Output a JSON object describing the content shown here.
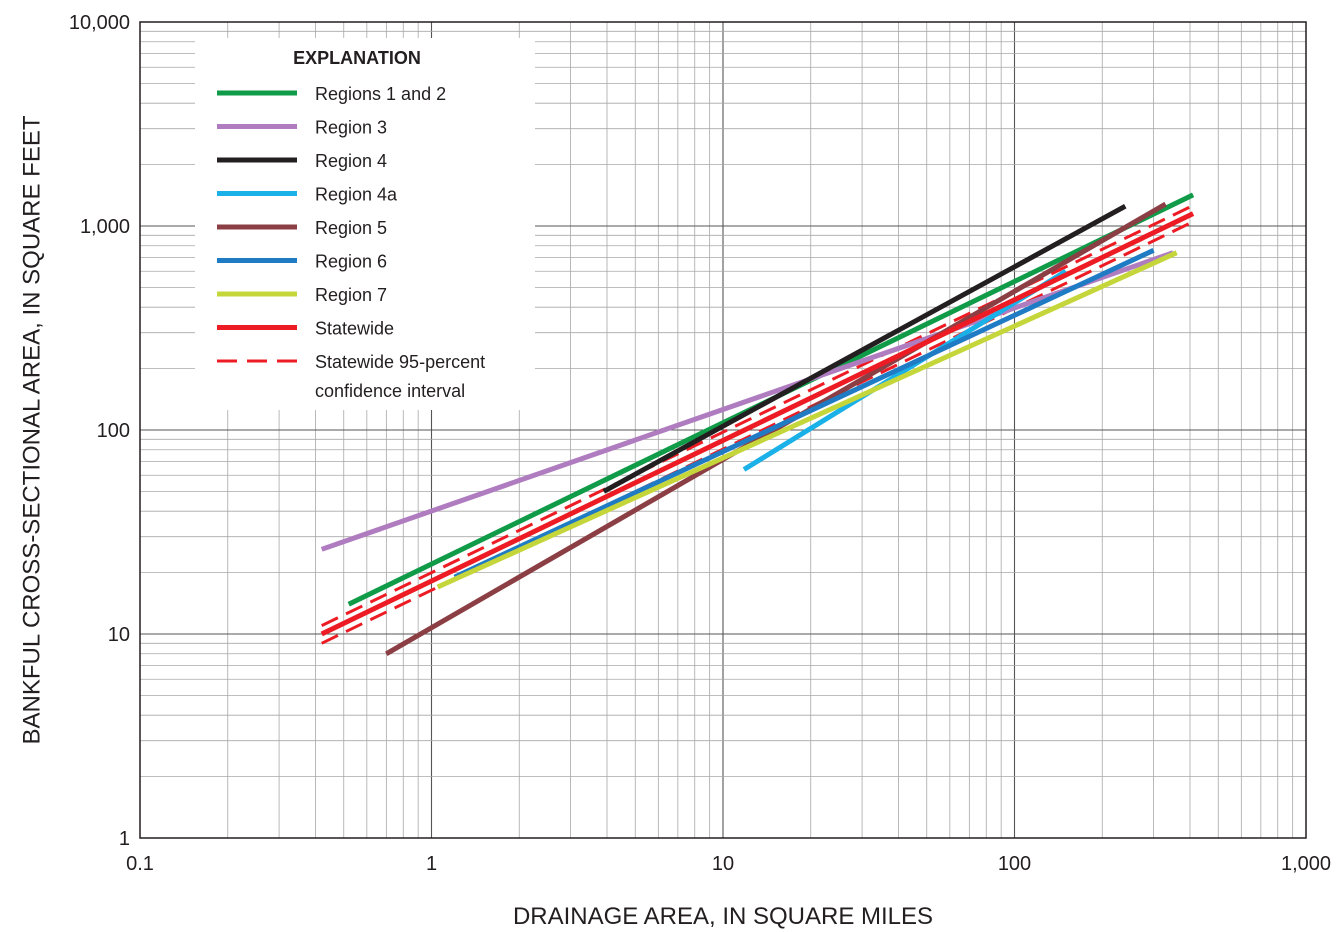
{
  "chart_data": {
    "type": "line",
    "title": "",
    "xlabel": "DRAINAGE AREA, IN SQUARE MILES",
    "ylabel": "BANKFUL CROSS-SECTIONAL AREA, IN SQUARE FEET",
    "x_scale": "log",
    "y_scale": "log",
    "xlim": [
      0.1,
      1000
    ],
    "ylim": [
      1,
      10000
    ],
    "x_ticks": [
      0.1,
      1,
      10,
      100,
      1000
    ],
    "x_tick_labels": [
      "0.1",
      "1",
      "10",
      "100",
      "1,000"
    ],
    "y_ticks": [
      1,
      10,
      100,
      1000,
      10000
    ],
    "y_tick_labels": [
      "1",
      "10",
      "100",
      "1,000",
      "10,000"
    ],
    "grid": true,
    "legend": {
      "title": "EXPLANATION",
      "placement": "top-left"
    },
    "series": [
      {
        "name": "Regions 1 and 2",
        "color": "#0f9b48",
        "style": "solid",
        "x": [
          0.52,
          410
        ],
        "y": [
          14,
          1420
        ]
      },
      {
        "name": "Region 3",
        "color": "#b07cc0",
        "style": "solid",
        "x": [
          0.42,
          350
        ],
        "y": [
          26,
          740
        ]
      },
      {
        "name": "Region 4",
        "color": "#231f20",
        "style": "solid",
        "x": [
          3.9,
          240
        ],
        "y": [
          50,
          1250
        ]
      },
      {
        "name": "Region 4a",
        "color": "#1ab0e8",
        "style": "solid",
        "x": [
          11.8,
          150
        ],
        "y": [
          64,
          600
        ]
      },
      {
        "name": "Region 5",
        "color": "#8b3e44",
        "style": "solid",
        "x": [
          0.7,
          330
        ],
        "y": [
          8,
          1280
        ]
      },
      {
        "name": "Region 6",
        "color": "#1f7bc4",
        "style": "solid",
        "x": [
          1.2,
          300
        ],
        "y": [
          19,
          760
        ]
      },
      {
        "name": "Region 7",
        "color": "#c5d63a",
        "style": "solid",
        "x": [
          1.05,
          360
        ],
        "y": [
          17,
          740
        ]
      },
      {
        "name": "Statewide",
        "color": "#ed1c24",
        "style": "solid",
        "x": [
          0.42,
          410
        ],
        "y": [
          10,
          1150
        ]
      },
      {
        "name": "Statewide 95-percent confidence interval",
        "name_lines": [
          "Statewide 95-percent",
          "confidence interval"
        ],
        "color": "#ed1c24",
        "style": "dashed",
        "x": [
          0.42,
          410
        ],
        "y": [
          11,
          1260
        ]
      },
      {
        "name": "Statewide 95-percent confidence interval (lower)",
        "color": "#ed1c24",
        "style": "dashed",
        "x": [
          0.42,
          410
        ],
        "y": [
          9,
          1050
        ],
        "legend": false
      }
    ]
  }
}
